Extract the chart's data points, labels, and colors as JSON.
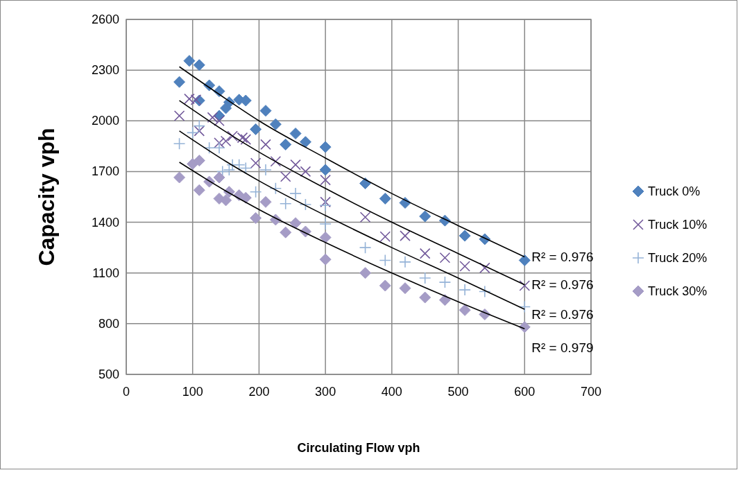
{
  "chart_data": {
    "type": "scatter",
    "xlabel": "Circulating Flow vph",
    "ylabel": "Capacity vph",
    "xlim": [
      0,
      700
    ],
    "xticks": [
      0,
      100,
      200,
      300,
      400,
      500,
      600,
      700
    ],
    "ylim": [
      500,
      2600
    ],
    "yticks": [
      500,
      800,
      1100,
      1400,
      1700,
      2000,
      2300,
      2600
    ],
    "grid": true,
    "legend": "right",
    "series": [
      {
        "name": "Truck 0%",
        "color": "#4f81bd",
        "marker": "diamond",
        "x": [
          80,
          95,
          110,
          110,
          125,
          140,
          140,
          150,
          155,
          170,
          180,
          195,
          210,
          225,
          240,
          255,
          270,
          300,
          300,
          360,
          390,
          420,
          450,
          480,
          510,
          540,
          600
        ],
        "values": [
          2230,
          2355,
          2330,
          2120,
          2210,
          2175,
          2030,
          2075,
          2110,
          2125,
          2120,
          1950,
          2060,
          1980,
          1860,
          1925,
          1875,
          1845,
          1710,
          1630,
          1540,
          1515,
          1435,
          1410,
          1320,
          1300,
          1175
        ]
      },
      {
        "name": "Truck 10%",
        "color": "#72599b",
        "marker": "x",
        "x": [
          80,
          95,
          105,
          110,
          130,
          140,
          140,
          150,
          160,
          175,
          180,
          195,
          210,
          225,
          240,
          255,
          270,
          300,
          300,
          360,
          390,
          420,
          450,
          480,
          510,
          540,
          600
        ],
        "values": [
          2030,
          2130,
          2125,
          1940,
          2020,
          2000,
          1870,
          1880,
          1910,
          1900,
          1890,
          1750,
          1860,
          1760,
          1670,
          1740,
          1700,
          1650,
          1520,
          1430,
          1315,
          1320,
          1215,
          1190,
          1140,
          1130,
          1025
        ]
      },
      {
        "name": "Truck 20%",
        "color": "#95b3d7",
        "marker": "cross",
        "x": [
          80,
          100,
          110,
          125,
          140,
          145,
          155,
          160,
          170,
          180,
          195,
          210,
          225,
          240,
          255,
          270,
          300,
          300,
          360,
          390,
          420,
          450,
          480,
          510,
          540,
          600
        ],
        "values": [
          1865,
          1930,
          1970,
          1840,
          1840,
          1700,
          1710,
          1740,
          1740,
          1720,
          1580,
          1710,
          1600,
          1510,
          1570,
          1505,
          1500,
          1390,
          1250,
          1175,
          1165,
          1070,
          1045,
          1000,
          990,
          900
        ]
      },
      {
        "name": "Truck 30%",
        "color": "#a59cc6",
        "marker": "diamond",
        "x": [
          80,
          100,
          110,
          110,
          125,
          140,
          140,
          150,
          155,
          170,
          180,
          195,
          210,
          225,
          240,
          255,
          270,
          300,
          300,
          360,
          390,
          420,
          450,
          480,
          510,
          540,
          600
        ],
        "values": [
          1665,
          1745,
          1765,
          1590,
          1640,
          1540,
          1665,
          1530,
          1580,
          1560,
          1545,
          1425,
          1520,
          1415,
          1340,
          1395,
          1345,
          1310,
          1180,
          1100,
          1025,
          1010,
          955,
          940,
          880,
          855,
          780
        ]
      },
      {
        "type": "line",
        "color": "#000000",
        "marker": "none",
        "x": [
          80,
          150,
          200,
          300,
          400,
          500,
          600
        ],
        "values": [
          2320,
          2130,
          2000,
          1780,
          1570,
          1380,
          1195
        ]
      },
      {
        "type": "line",
        "color": "#000000",
        "marker": "none",
        "x": [
          80,
          150,
          200,
          300,
          400,
          500,
          600
        ],
        "values": [
          2120,
          1935,
          1815,
          1600,
          1400,
          1215,
          1030
        ]
      },
      {
        "type": "line",
        "color": "#000000",
        "marker": "none",
        "x": [
          80,
          150,
          200,
          300,
          400,
          500,
          600
        ],
        "values": [
          1940,
          1760,
          1645,
          1440,
          1250,
          1070,
          885
        ]
      },
      {
        "type": "line",
        "color": "#000000",
        "marker": "none",
        "x": [
          80,
          150,
          200,
          300,
          400,
          500,
          600
        ],
        "values": [
          1755,
          1585,
          1475,
          1280,
          1100,
          930,
          770
        ]
      }
    ],
    "annotations": [
      "R² = 0.976",
      "R² = 0.976",
      "R² = 0.976",
      "R² = 0.979"
    ]
  }
}
